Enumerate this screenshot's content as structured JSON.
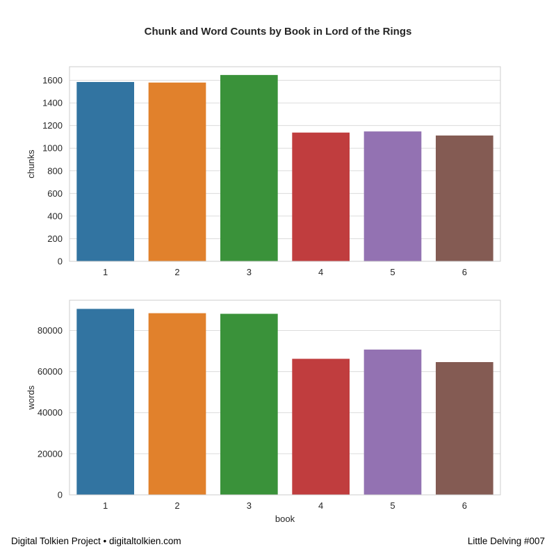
{
  "title": "Chunk and Word Counts by Book in Lord of the Rings",
  "footer": {
    "left": "Digital Tolkien Project • digitaltolkien.com",
    "right": "Little Delving #007"
  },
  "colors": [
    "#3274a1",
    "#e1812c",
    "#3a923a",
    "#c03d3e",
    "#9372b2",
    "#845b53"
  ],
  "chart_data": [
    {
      "type": "bar",
      "categories": [
        "1",
        "2",
        "3",
        "4",
        "5",
        "6"
      ],
      "values": [
        1585,
        1580,
        1647,
        1138,
        1148,
        1112
      ],
      "xlabel": "",
      "ylabel": "chunks",
      "ylim": [
        0,
        1720
      ],
      "yticks": [
        0,
        200,
        400,
        600,
        800,
        1000,
        1200,
        1400,
        1600
      ],
      "grid": true
    },
    {
      "type": "bar",
      "categories": [
        "1",
        "2",
        "3",
        "4",
        "5",
        "6"
      ],
      "values": [
        90500,
        88400,
        88100,
        66200,
        70700,
        64600
      ],
      "xlabel": "book",
      "ylabel": "words",
      "ylim": [
        0,
        94700
      ],
      "yticks": [
        0,
        20000,
        40000,
        60000,
        80000
      ],
      "grid": true
    }
  ]
}
